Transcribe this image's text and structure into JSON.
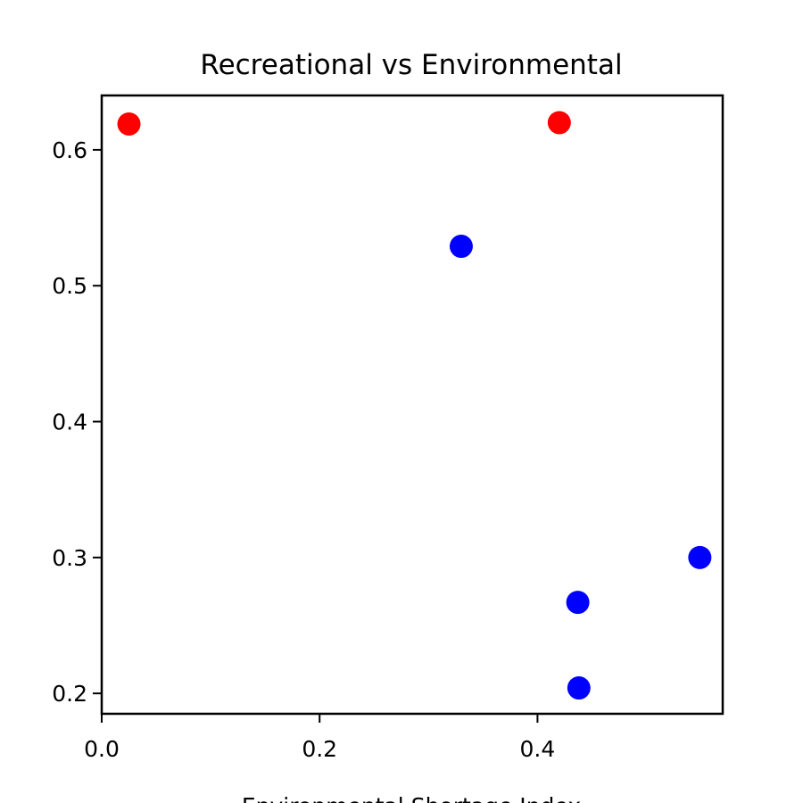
{
  "chart_data": {
    "type": "scatter",
    "title": "Recreational vs Environmental",
    "xlabel": "Environmental Shortage Index",
    "ylabel": "",
    "xlim": [
      0.0,
      0.57
    ],
    "ylim": [
      0.185,
      0.64
    ],
    "xticks": [
      0.0,
      0.2,
      0.4
    ],
    "xtick_labels": [
      "0.0",
      "0.2",
      "0.4"
    ],
    "yticks": [
      0.2,
      0.3,
      0.4,
      0.5,
      0.6
    ],
    "ytick_labels": [
      "0.2",
      "0.3",
      "0.4",
      "0.5",
      "0.6"
    ],
    "grid": false,
    "points": [
      {
        "x": 0.025,
        "y": 0.619,
        "color": "#ff0000"
      },
      {
        "x": 0.42,
        "y": 0.62,
        "color": "#ff0000"
      },
      {
        "x": 0.33,
        "y": 0.529,
        "color": "#0000ff"
      },
      {
        "x": 0.549,
        "y": 0.3,
        "color": "#0000ff"
      },
      {
        "x": 0.437,
        "y": 0.267,
        "color": "#0000ff"
      },
      {
        "x": 0.438,
        "y": 0.204,
        "color": "#0000ff"
      }
    ]
  }
}
